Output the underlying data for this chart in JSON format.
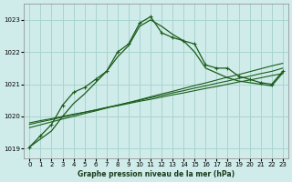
{
  "title": "Graphe pression niveau de la mer (hPa)",
  "background_color": "#d0ecea",
  "grid_color": "#a8d4cf",
  "line_color": "#1a5c1a",
  "xlim": [
    -0.5,
    23.5
  ],
  "ylim": [
    1018.7,
    1023.5
  ],
  "yticks": [
    1019,
    1020,
    1021,
    1022,
    1023
  ],
  "xticks": [
    0,
    1,
    2,
    3,
    4,
    5,
    6,
    7,
    8,
    9,
    10,
    11,
    12,
    13,
    14,
    15,
    16,
    17,
    18,
    19,
    20,
    21,
    22,
    23
  ],
  "line_main": [
    1019.05,
    1019.4,
    1019.75,
    1020.35,
    1020.75,
    1020.9,
    1021.15,
    1021.4,
    1022.0,
    1022.25,
    1022.9,
    1023.1,
    1022.6,
    1022.45,
    1022.35,
    1022.25,
    1021.6,
    1021.5,
    1021.5,
    1021.25,
    1021.15,
    1021.05,
    1021.0,
    1021.4
  ],
  "line_smooth": [
    1019.05,
    1019.3,
    1019.55,
    1020.0,
    1020.4,
    1020.7,
    1021.05,
    1021.4,
    1021.85,
    1022.2,
    1022.8,
    1023.0,
    1022.8,
    1022.55,
    1022.35,
    1022.0,
    1021.5,
    1021.35,
    1021.2,
    1021.1,
    1021.05,
    1021.0,
    1020.95,
    1021.35
  ],
  "line_trend1": [
    1019.8,
    1019.87,
    1019.93,
    1020.0,
    1020.07,
    1020.13,
    1020.2,
    1020.27,
    1020.33,
    1020.4,
    1020.47,
    1020.53,
    1020.6,
    1020.67,
    1020.73,
    1020.8,
    1020.87,
    1020.93,
    1021.0,
    1021.07,
    1021.13,
    1021.2,
    1021.27,
    1021.33
  ],
  "line_trend2": [
    1019.75,
    1019.83,
    1019.9,
    1019.98,
    1020.05,
    1020.13,
    1020.2,
    1020.28,
    1020.35,
    1020.43,
    1020.5,
    1020.58,
    1020.65,
    1020.73,
    1020.8,
    1020.88,
    1020.95,
    1021.03,
    1021.1,
    1021.18,
    1021.25,
    1021.33,
    1021.4,
    1021.5
  ],
  "line_trend3": [
    1019.65,
    1019.74,
    1019.83,
    1019.92,
    1020.0,
    1020.09,
    1020.17,
    1020.26,
    1020.35,
    1020.43,
    1020.52,
    1020.61,
    1020.7,
    1020.78,
    1020.87,
    1020.96,
    1021.04,
    1021.13,
    1021.22,
    1021.3,
    1021.39,
    1021.48,
    1021.57,
    1021.65
  ]
}
